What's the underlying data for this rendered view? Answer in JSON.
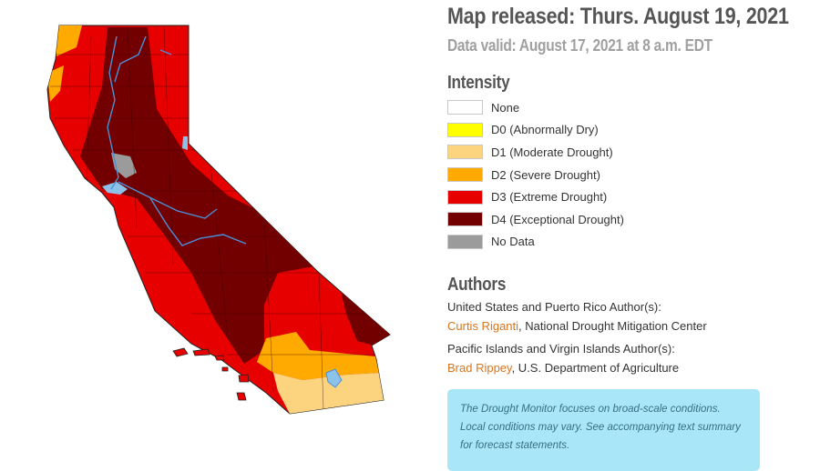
{
  "header": {
    "release": "Map released: Thurs. August 19, 2021",
    "valid": "Data valid: August 17, 2021 at 8 a.m. EDT"
  },
  "legend": {
    "heading": "Intensity",
    "items": [
      {
        "label": "None",
        "color": "#ffffff"
      },
      {
        "label": "D0 (Abnormally Dry)",
        "color": "#ffff00"
      },
      {
        "label": "D1 (Moderate Drought)",
        "color": "#fcd37f"
      },
      {
        "label": "D2 (Severe Drought)",
        "color": "#ffaa00"
      },
      {
        "label": "D3 (Extreme Drought)",
        "color": "#e60000"
      },
      {
        "label": "D4 (Exceptional Drought)",
        "color": "#730000"
      },
      {
        "label": "No Data",
        "color": "#9b9b9b"
      }
    ]
  },
  "authors": {
    "heading": "Authors",
    "us_label": "United States and Puerto Rico Author(s):",
    "us_name": "Curtis Riganti",
    "us_org": ", National Drought Mitigation Center",
    "pacific_label": "Pacific Islands and Virgin Islands Author(s):",
    "pacific_name": "Brad Rippey",
    "pacific_org": ", U.S. Department of Agriculture"
  },
  "note": "The Drought Monitor focuses on broad-scale conditions. Local conditions may vary. See accompanying text summary for forecast statements.",
  "colors": {
    "heading": "#555555",
    "subheading": "#a0a0a0",
    "link": "#d9741f",
    "note_bg": "#a9e7f8",
    "note_text": "#356f86",
    "water": "#8cc1e8",
    "river": "#4a90d9"
  }
}
